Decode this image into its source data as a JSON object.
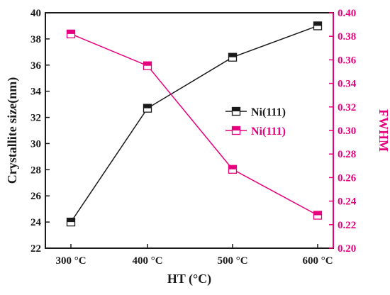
{
  "chart_data": {
    "type": "line",
    "categories": [
      "300 °C",
      "400 °C",
      "500 °C",
      "600 °C"
    ],
    "xlabel": "HT (°C)",
    "ylabel": "Crystallite size(nm)",
    "ylim": [
      22,
      40
    ],
    "yticks": [
      22,
      24,
      26,
      28,
      30,
      32,
      34,
      36,
      38,
      40
    ],
    "y2label": "FWHM",
    "y2lim": [
      0.2,
      0.4
    ],
    "y2ticks": [
      "0.20",
      "0.22",
      "0.24",
      "0.26",
      "0.28",
      "0.30",
      "0.32",
      "0.34",
      "0.36",
      "0.38",
      "0.40"
    ],
    "series": [
      {
        "name": "Ni(111)",
        "axis": "left",
        "color": "#1a1a1a",
        "marker": "half-filled-square",
        "values": [
          24.0,
          32.7,
          36.6,
          39.0
        ]
      },
      {
        "name": "Ni(111)",
        "axis": "right",
        "color": "#e6007e",
        "marker": "half-filled-square",
        "values": [
          0.382,
          0.355,
          0.267,
          0.228
        ]
      }
    ],
    "legend": "center-right",
    "grid": false
  }
}
